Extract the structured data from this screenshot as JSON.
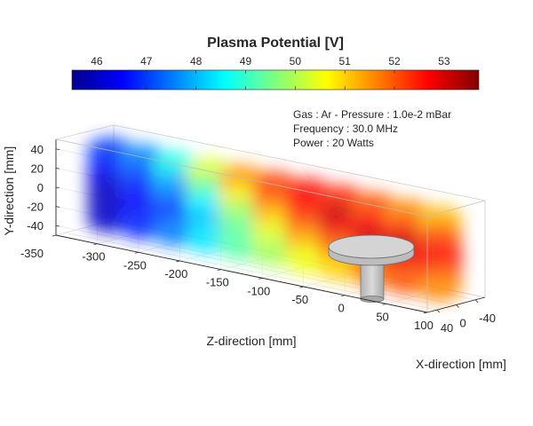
{
  "chart_data": {
    "type": "heatmap",
    "title": "Plasma Potential [V]",
    "colorbar": {
      "colormap": "jet",
      "min": 45.5,
      "max": 53.7,
      "ticks": [
        "46",
        "47",
        "48",
        "49",
        "50",
        "51",
        "52",
        "53"
      ],
      "tick_values": [
        46,
        47,
        48,
        49,
        50,
        51,
        52,
        53
      ]
    },
    "annotations": [
      "Gas : Ar - Pressure : 1.0e-2 mBar",
      "Frequency : 30.0 MHz",
      "Power : 20 Watts"
    ],
    "axes": {
      "x": {
        "label": "X-direction [mm]",
        "ticks": [
          "40",
          "0",
          "-40"
        ],
        "tick_values": [
          40,
          0,
          -40
        ],
        "range": [
          60,
          -60
        ]
      },
      "y": {
        "label": "Y-direction [mm]",
        "ticks": [
          "40",
          "20",
          "0",
          "-20",
          "-40"
        ],
        "tick_values": [
          40,
          20,
          0,
          -20,
          -40
        ],
        "range": [
          -50,
          50
        ]
      },
      "z": {
        "label": "Z-direction [mm]",
        "ticks": [
          "-350",
          "-300",
          "-250",
          "-200",
          "-150",
          "-100",
          "-50",
          "0",
          "50",
          "100"
        ],
        "tick_values": [
          -350,
          -300,
          -250,
          -200,
          -150,
          -100,
          -50,
          0,
          50,
          100
        ],
        "range": [
          -350,
          100
        ]
      }
    },
    "grid": true,
    "z_positions": [
      -320,
      -280,
      -240,
      -200,
      -160,
      -120,
      -80,
      -40,
      0,
      40,
      80
    ],
    "y_positions": [
      35,
      17,
      0,
      -17,
      -35
    ],
    "values": [
      [
        47.0,
        46.6,
        46.2,
        46.0,
        46.1
      ],
      [
        47.6,
        47.1,
        46.7,
        46.5,
        46.8
      ],
      [
        48.8,
        48.0,
        47.4,
        47.0,
        47.5
      ],
      [
        50.3,
        49.4,
        48.5,
        48.1,
        48.4
      ],
      [
        51.5,
        50.8,
        49.9,
        49.4,
        49.3
      ],
      [
        52.2,
        51.9,
        51.1,
        50.4,
        49.9
      ],
      [
        52.6,
        52.7,
        52.1,
        51.3,
        50.5
      ],
      [
        52.4,
        53.1,
        52.8,
        51.9,
        51.0
      ],
      [
        52.0,
        52.6,
        53.1,
        52.5,
        51.7
      ],
      [
        51.6,
        52.3,
        53.2,
        52.8,
        52.0
      ],
      [
        51.2,
        52.0,
        52.7,
        52.3,
        51.6
      ]
    ],
    "object": "cylindrical electrode (disk on post)"
  }
}
